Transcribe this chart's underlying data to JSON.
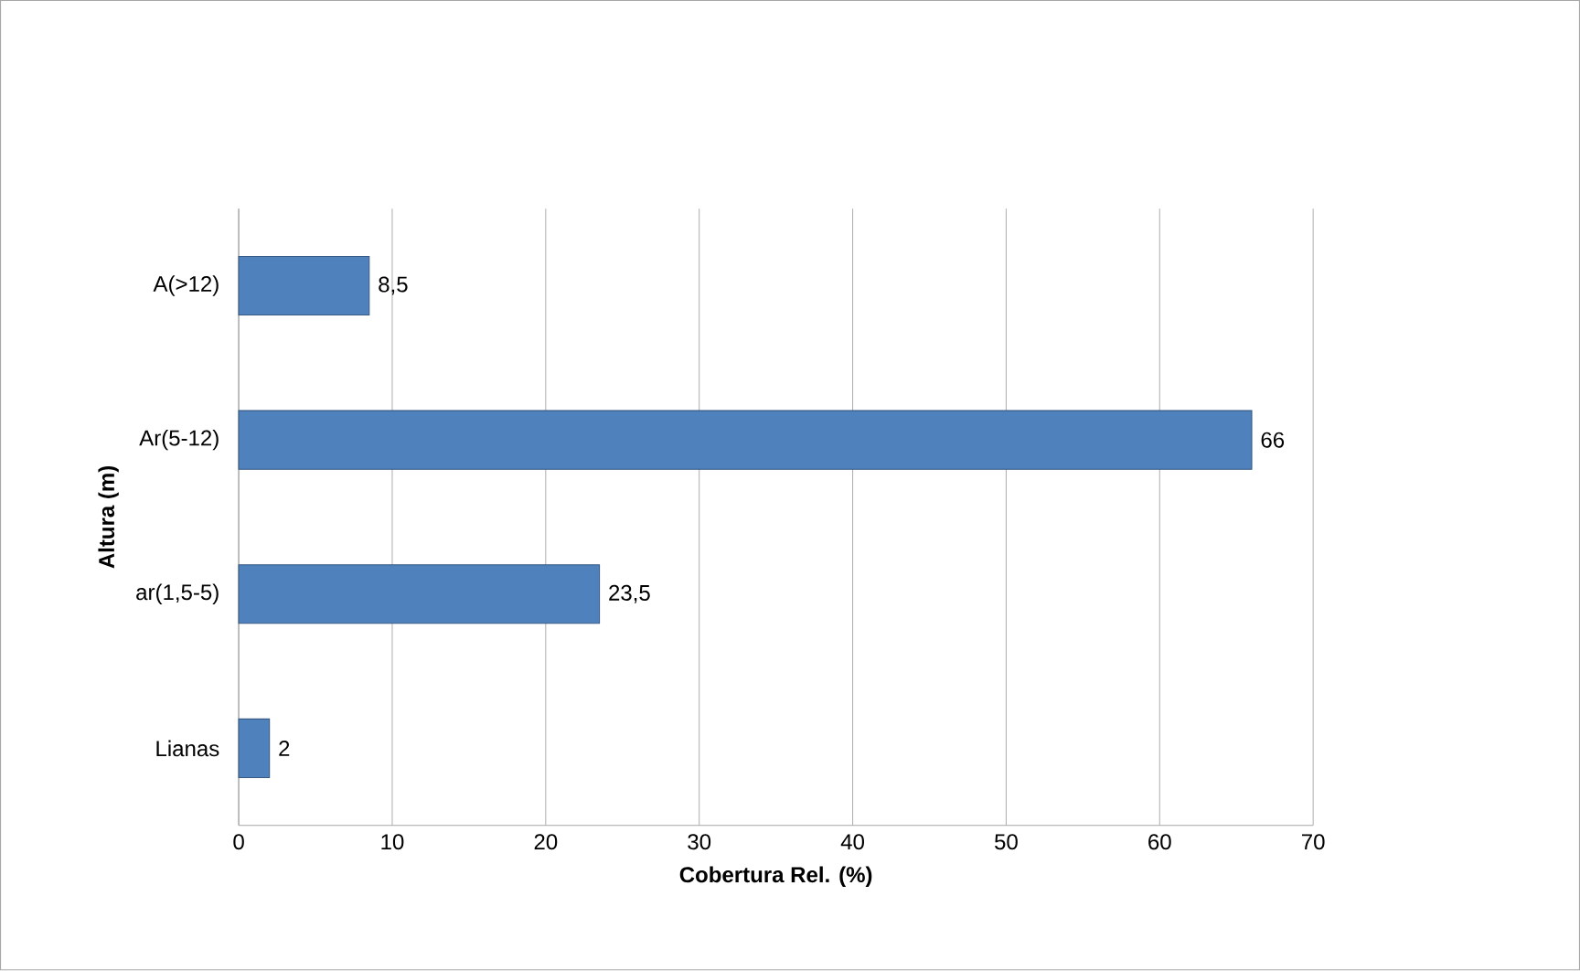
{
  "chart_data": {
    "type": "bar",
    "orientation": "horizontal",
    "categories": [
      "A(>12)",
      "Ar(5-12)",
      "ar(1,5-5)",
      "Lianas"
    ],
    "values": [
      8.5,
      66,
      23.5,
      2
    ],
    "value_labels": [
      "8,5",
      "66",
      "23,5",
      "2"
    ],
    "color": "#4f81bd",
    "xlim": [
      0,
      70
    ],
    "xticks": [
      0,
      10,
      20,
      30,
      40,
      50,
      60,
      70
    ],
    "xlabel": "Cobertura Rel. (%)",
    "ylabel": "Altura (m)",
    "grid": "x"
  }
}
